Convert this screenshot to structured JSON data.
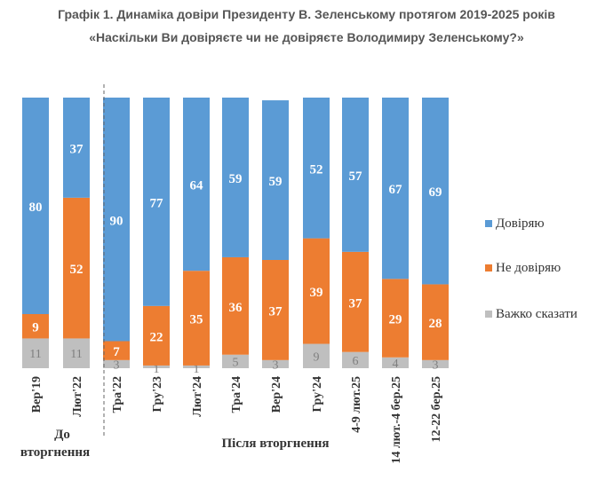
{
  "chart_data": {
    "type": "bar",
    "stacked": true,
    "title": "Графік 1. Динаміка довіри Президенту В. Зеленському протягом 2019-2025 років",
    "subtitle": "«Наскільки Ви довіряєте чи не довіряєте Володимиру Зеленському?»",
    "categories": [
      "Вер'19",
      "Лют'22",
      "Тра'22",
      "Гру'23",
      "Лют'24",
      "Тра'24",
      "Вер'24",
      "Гру'24",
      "4-9 лют.25",
      "14 лют.-4 бер.25",
      "12-22 бер.25"
    ],
    "series": [
      {
        "name": "Важко сказати",
        "color": "#BFBFBF",
        "values": [
          11,
          11,
          3,
          1,
          1,
          5,
          3,
          9,
          6,
          4,
          3
        ]
      },
      {
        "name": "Не довіряю",
        "color": "#ED7D31",
        "values": [
          9,
          52,
          7,
          22,
          35,
          36,
          37,
          39,
          37,
          29,
          28
        ]
      },
      {
        "name": "Довіряю",
        "color": "#5B9BD5",
        "values": [
          80,
          37,
          90,
          77,
          64,
          59,
          59,
          52,
          57,
          67,
          69
        ]
      }
    ],
    "legend_order": [
      "Довіряю",
      "Не довіряю",
      "Важко сказати"
    ],
    "legend_position": "right",
    "groups": [
      {
        "label": "До вторгнення"
      },
      {
        "label": "Після вторгнення"
      }
    ],
    "ylim": [
      0,
      100
    ],
    "grid": false
  }
}
